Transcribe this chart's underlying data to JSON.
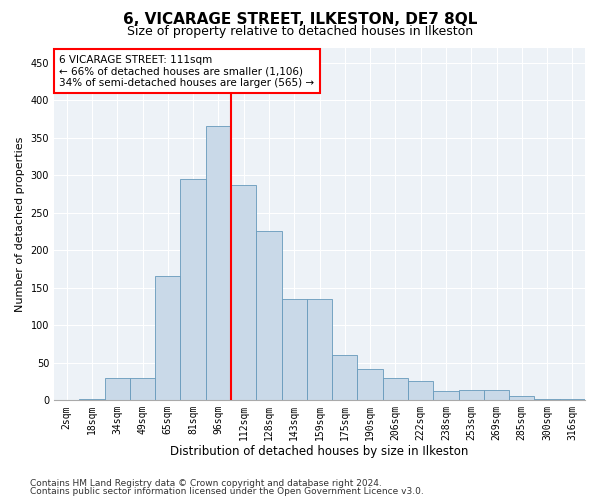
{
  "title": "6, VICARAGE STREET, ILKESTON, DE7 8QL",
  "subtitle": "Size of property relative to detached houses in Ilkeston",
  "xlabel": "Distribution of detached houses by size in Ilkeston",
  "ylabel": "Number of detached properties",
  "bar_labels": [
    "2sqm",
    "18sqm",
    "34sqm",
    "49sqm",
    "65sqm",
    "81sqm",
    "96sqm",
    "112sqm",
    "128sqm",
    "143sqm",
    "159sqm",
    "175sqm",
    "190sqm",
    "206sqm",
    "222sqm",
    "238sqm",
    "253sqm",
    "269sqm",
    "285sqm",
    "300sqm",
    "316sqm"
  ],
  "bar_values": [
    0,
    2,
    30,
    30,
    166,
    295,
    365,
    287,
    225,
    135,
    135,
    60,
    42,
    30,
    25,
    12,
    13,
    13,
    5,
    2,
    1
  ],
  "bar_color": "#c9d9e8",
  "bar_edge_color": "#6699bb",
  "vline_idx": 7,
  "vline_color": "red",
  "annotation_text": "6 VICARAGE STREET: 111sqm\n← 66% of detached houses are smaller (1,106)\n34% of semi-detached houses are larger (565) →",
  "ylim": [
    0,
    470
  ],
  "yticks": [
    0,
    50,
    100,
    150,
    200,
    250,
    300,
    350,
    400,
    450
  ],
  "bg_color": "#edf2f7",
  "footnote1": "Contains HM Land Registry data © Crown copyright and database right 2024.",
  "footnote2": "Contains public sector information licensed under the Open Government Licence v3.0.",
  "title_fontsize": 11,
  "subtitle_fontsize": 9,
  "xlabel_fontsize": 8.5,
  "ylabel_fontsize": 8,
  "tick_fontsize": 7,
  "footnote_fontsize": 6.5,
  "annot_fontsize": 7.5
}
